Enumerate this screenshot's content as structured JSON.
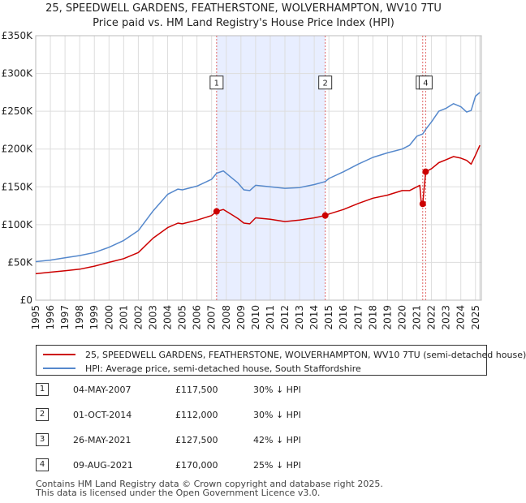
{
  "title_line1": "25, SPEEDWELL GARDENS, FEATHERSTONE, WOLVERHAMPTON, WV10 7TU",
  "title_line2": "Price paid vs. HM Land Registry's House Price Index (HPI)",
  "colors": {
    "property": "#cc0000",
    "hpi": "#5588cc",
    "shade": "#e8eeff",
    "marker_line": "#e06666"
  },
  "chart_data": {
    "type": "line",
    "xlim": [
      1995,
      2025.4
    ],
    "ylim": [
      0,
      350000
    ],
    "y_ticks": [
      0,
      50000,
      100000,
      150000,
      200000,
      250000,
      300000,
      350000
    ],
    "y_tick_labels": [
      "£0",
      "£50K",
      "£100K",
      "£150K",
      "£200K",
      "£250K",
      "£300K",
      "£350K"
    ],
    "x_ticks": [
      1995,
      1996,
      1997,
      1998,
      1999,
      2000,
      2001,
      2002,
      2003,
      2004,
      2005,
      2006,
      2007,
      2008,
      2009,
      2010,
      2011,
      2012,
      2013,
      2014,
      2015,
      2016,
      2017,
      2018,
      2019,
      2020,
      2021,
      2022,
      2023,
      2024,
      2025
    ],
    "x_tick_labels": [
      "1995",
      "1996",
      "1997",
      "1998",
      "1999",
      "2000",
      "2001",
      "2002",
      "2003",
      "2004",
      "2005",
      "2006",
      "2007",
      "2008",
      "2009",
      "2010",
      "2011",
      "2012",
      "2013",
      "2014",
      "2015",
      "2016",
      "2017",
      "2018",
      "2019",
      "2020",
      "2021",
      "2022",
      "2023",
      "2024",
      "2025"
    ],
    "shaded_period": [
      2007.34,
      2014.75
    ],
    "markers": [
      {
        "label": "1",
        "x": 2007.34,
        "y": 117500
      },
      {
        "label": "2",
        "x": 2014.75,
        "y": 112000
      },
      {
        "label": "3",
        "x": 2021.4,
        "y": 127500
      },
      {
        "label": "4",
        "x": 2021.6,
        "y": 170000
      }
    ],
    "marker_label_y": 288000,
    "series": [
      {
        "name": "25, SPEEDWELL GARDENS, FEATHERSTONE, WOLVERHAMPTON, WV10 7TU (semi-detached house)",
        "color": "#cc0000",
        "x": [
          1995,
          1996,
          1997,
          1998,
          1999,
          2000,
          2001,
          2002,
          2003,
          2004,
          2004.7,
          2005,
          2006,
          2007,
          2007.34,
          2007.8,
          2008.3,
          2008.8,
          2009.2,
          2009.6,
          2010,
          2011,
          2012,
          2013,
          2014,
          2014.75,
          2015,
          2016,
          2017,
          2018,
          2019,
          2020,
          2020.5,
          2021,
          2021.2,
          2021.3,
          2021.4,
          2021.6,
          2022,
          2022.5,
          2023,
          2023.5,
          2024,
          2024.4,
          2024.7,
          2025,
          2025.3
        ],
        "y": [
          35000,
          37000,
          39000,
          41000,
          45000,
          50000,
          55000,
          63000,
          82000,
          96000,
          102000,
          101000,
          106000,
          112000,
          117500,
          120000,
          114000,
          108000,
          102000,
          101000,
          109000,
          107000,
          104000,
          106000,
          109000,
          112000,
          114000,
          120000,
          128000,
          135000,
          139000,
          145000,
          145000,
          150000,
          152000,
          128000,
          127500,
          170000,
          174000,
          182000,
          186000,
          190000,
          188000,
          185000,
          180000,
          192000,
          205000
        ]
      },
      {
        "name": "HPI: Average price, semi-detached house, South Staffordshire",
        "color": "#5588cc",
        "x": [
          1995,
          1996,
          1997,
          1998,
          1999,
          2000,
          2001,
          2002,
          2003,
          2004,
          2004.7,
          2005,
          2006,
          2007,
          2007.34,
          2007.8,
          2008.3,
          2008.8,
          2009.2,
          2009.6,
          2010,
          2011,
          2012,
          2013,
          2014,
          2014.75,
          2015,
          2016,
          2017,
          2018,
          2019,
          2020,
          2020.5,
          2021,
          2021.4,
          2021.6,
          2022,
          2022.5,
          2023,
          2023.5,
          2024,
          2024.4,
          2024.7,
          2025,
          2025.3
        ],
        "y": [
          51000,
          53000,
          56000,
          59000,
          63000,
          70000,
          79000,
          92000,
          118000,
          140000,
          147000,
          146000,
          151000,
          160000,
          168000,
          171000,
          163000,
          155000,
          146000,
          145000,
          152000,
          150000,
          148000,
          149000,
          153000,
          157000,
          161000,
          170000,
          180000,
          189000,
          195000,
          200000,
          205000,
          217000,
          220000,
          226000,
          236000,
          250000,
          254000,
          260000,
          256000,
          249000,
          251000,
          270000,
          275000
        ]
      }
    ]
  },
  "legend": [
    {
      "label": "25, SPEEDWELL GARDENS, FEATHERSTONE, WOLVERHAMPTON, WV10 7TU (semi-detached house)",
      "color": "#cc0000"
    },
    {
      "label": "HPI: Average price, semi-detached house, South Staffordshire",
      "color": "#5588cc"
    }
  ],
  "sales": [
    {
      "num": "1",
      "date": "04-MAY-2007",
      "price": "£117,500",
      "hpi": "30% ↓ HPI"
    },
    {
      "num": "2",
      "date": "01-OCT-2014",
      "price": "£112,000",
      "hpi": "30% ↓ HPI"
    },
    {
      "num": "3",
      "date": "26-MAY-2021",
      "price": "£127,500",
      "hpi": "42% ↓ HPI"
    },
    {
      "num": "4",
      "date": "09-AUG-2021",
      "price": "£170,000",
      "hpi": "25% ↓ HPI"
    }
  ],
  "footer": [
    "Contains HM Land Registry data © Crown copyright and database right 2025.",
    "This data is licensed under the Open Government Licence v3.0."
  ]
}
